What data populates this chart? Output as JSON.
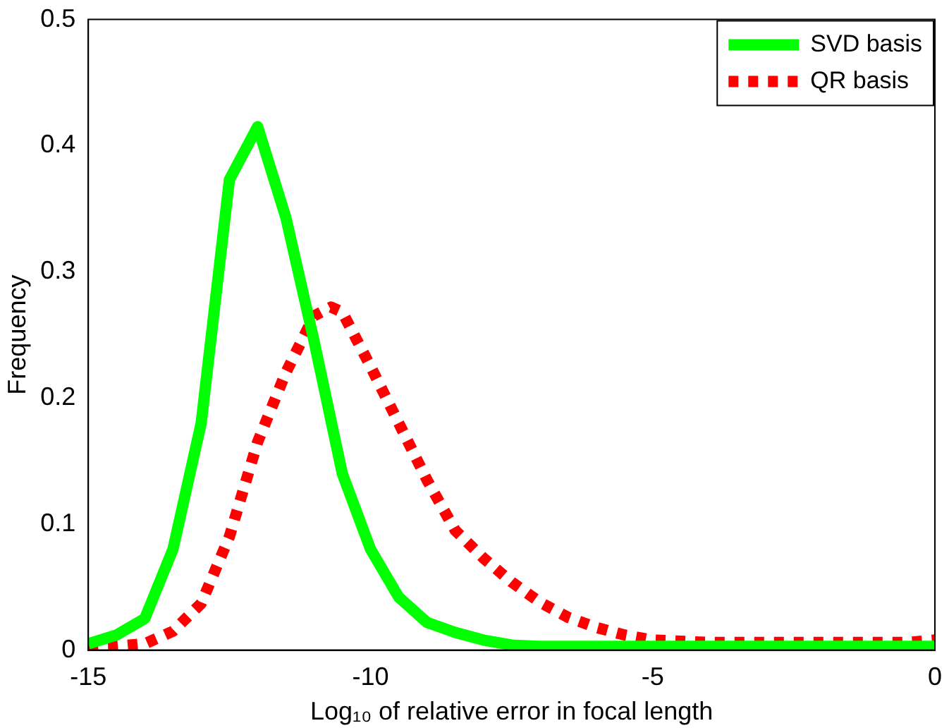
{
  "chart_data": {
    "type": "line",
    "xlabel": "Log₁₀ of relative error in focal length",
    "ylabel": "Frequency",
    "xlim": [
      -15,
      0
    ],
    "xticks": [
      -15,
      -10,
      -5,
      0
    ],
    "ylim": [
      0,
      0.5
    ],
    "yticks": [
      0,
      0.1,
      0.2,
      0.3,
      0.4,
      0.5
    ],
    "grid": false,
    "legend": "top right",
    "marker": "none",
    "series": [
      {
        "name": "SVD basis",
        "color": "#00ff00",
        "line_style": "solid",
        "x": [
          -15,
          -14.5,
          -14,
          -13.5,
          -13,
          -12.5,
          -12,
          -11.5,
          -11,
          -10.5,
          -10,
          -9.5,
          -9,
          -8.5,
          -8,
          -7.5,
          -7,
          -6,
          -5,
          -4,
          -3,
          -2,
          -1,
          0
        ],
        "values": [
          0.005,
          0.012,
          0.025,
          0.08,
          0.18,
          0.373,
          0.415,
          0.343,
          0.245,
          0.14,
          0.08,
          0.042,
          0.022,
          0.014,
          0.008,
          0.004,
          0.003,
          0.003,
          0.003,
          0.003,
          0.003,
          0.003,
          0.003,
          0.003
        ]
      },
      {
        "name": "QR basis",
        "color": "#ff0000",
        "line_style": "dotted",
        "x": [
          -15,
          -14.5,
          -14,
          -13.5,
          -13,
          -12.5,
          -12,
          -11.5,
          -11,
          -10.7,
          -10.5,
          -10,
          -9.5,
          -9,
          -8.5,
          -8,
          -7.5,
          -7,
          -6.5,
          -6,
          -5.5,
          -5,
          -4.5,
          -4,
          -3,
          -2,
          -1,
          -0.5,
          0
        ],
        "values": [
          0.002,
          0.003,
          0.005,
          0.015,
          0.037,
          0.09,
          0.165,
          0.22,
          0.265,
          0.272,
          0.268,
          0.225,
          0.18,
          0.135,
          0.095,
          0.073,
          0.054,
          0.038,
          0.026,
          0.018,
          0.012,
          0.008,
          0.007,
          0.006,
          0.006,
          0.006,
          0.006,
          0.006,
          0.008
        ]
      }
    ]
  }
}
